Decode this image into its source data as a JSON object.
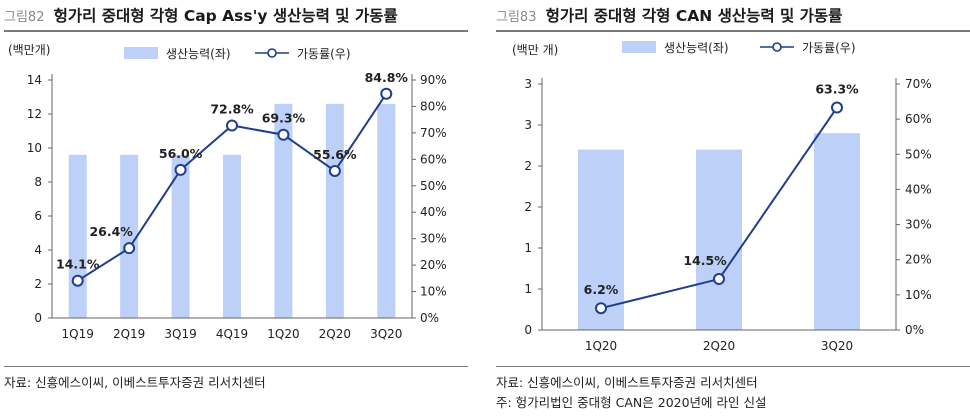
{
  "charts": [
    {
      "figure_number": "그림82",
      "figure_title": "헝가리 중대형 각형 Cap Ass'y 생산능력 및 가동률",
      "source_notes": [
        "자료: 신흥에스이씨, 이베스트투자증권 리서치센터"
      ]
    },
    {
      "figure_number": "그림83",
      "figure_title": "헝가리 중대형 각형 CAN 생산능력 및 가동률",
      "source_notes": [
        "자료: 신흥에스이씨, 이베스트투자증권 리서치센터",
        "주: 헝가리법인 중대형 CAN은 2020년에 라인 신설"
      ]
    }
  ],
  "colors": {
    "bar": "#bcd0f8",
    "line": "#1f3f8c",
    "marker_fill": "#ffffff",
    "axis": "#666666",
    "text": "#222222"
  },
  "chart_data": [
    {
      "type": "bar+line",
      "categories": [
        "1Q19",
        "2Q19",
        "3Q19",
        "4Q19",
        "1Q20",
        "2Q20",
        "3Q20"
      ],
      "series": [
        {
          "name": "생산능력(좌)",
          "type": "bar",
          "axis": "left",
          "values": [
            9.6,
            9.6,
            9.6,
            9.6,
            12.6,
            12.6,
            12.6
          ]
        },
        {
          "name": "가동률(우)",
          "type": "line",
          "axis": "right",
          "values": [
            14.1,
            26.4,
            56.0,
            72.8,
            69.3,
            55.6,
            84.8
          ]
        }
      ],
      "data_labels": [
        "14.1%",
        "26.4%",
        "56.0%",
        "72.8%",
        "69.3%",
        "55.6%",
        "84.8%"
      ],
      "y_left_unit": "(백만개)",
      "y_left_ticks": [
        "0",
        "2",
        "4",
        "6",
        "8",
        "10",
        "12",
        "14"
      ],
      "y_left_range": [
        0,
        14
      ],
      "y_right_ticks": [
        "0%",
        "10%",
        "20%",
        "30%",
        "40%",
        "50%",
        "60%",
        "70%",
        "80%",
        "90%"
      ],
      "y_right_range": [
        0,
        90
      ],
      "legend_position": "top",
      "grid": false
    },
    {
      "type": "bar+line",
      "categories": [
        "1Q20",
        "2Q20",
        "3Q20"
      ],
      "series": [
        {
          "name": "생산능력(좌)",
          "type": "bar",
          "axis": "left",
          "values": [
            2.2,
            2.2,
            2.4
          ]
        },
        {
          "name": "가동률(우)",
          "type": "line",
          "axis": "right",
          "values": [
            6.2,
            14.5,
            63.3
          ]
        }
      ],
      "data_labels": [
        "6.2%",
        "14.5%",
        "63.3%"
      ],
      "y_left_unit": "(백만 개)",
      "y_left_ticks": [
        "0",
        "1",
        "1",
        "2",
        "2",
        "3",
        "3"
      ],
      "y_left_range": [
        0,
        3
      ],
      "y_right_ticks": [
        "0%",
        "10%",
        "20%",
        "30%",
        "40%",
        "50%",
        "60%",
        "70%"
      ],
      "y_right_range": [
        0,
        70
      ],
      "legend_position": "top",
      "grid": false
    }
  ]
}
